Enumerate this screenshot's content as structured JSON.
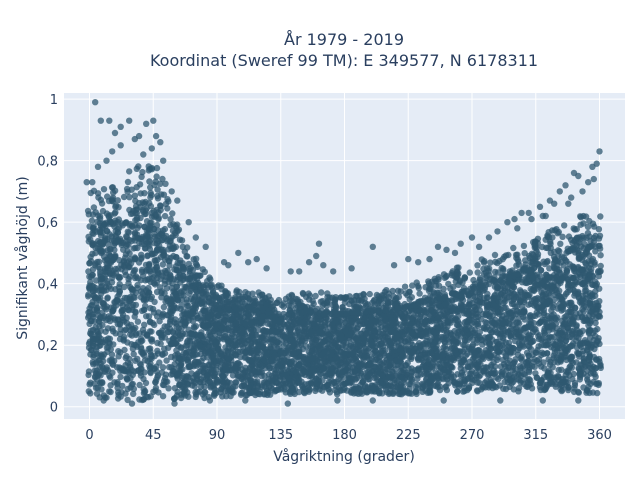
{
  "chart_data": {
    "type": "scatter",
    "title_line1": "År 1979 - 2019",
    "title_line2": "Koordinat (Sweref 99 TM): E 349577, N 6178311",
    "xlabel": "Vågriktning (grader)",
    "ylabel": "Signifikant våghöjd (m)",
    "xlim": [
      -18,
      378
    ],
    "ylim": [
      -0.04,
      1.02
    ],
    "x_ticks": [
      0,
      45,
      90,
      135,
      180,
      225,
      270,
      315,
      360
    ],
    "y_ticks": [
      0,
      0.2,
      0.4,
      0.6,
      0.8,
      1
    ],
    "y_tick_labels": [
      "0",
      "0,2",
      "0,4",
      "0,6",
      "0,8",
      "1"
    ],
    "grid": true,
    "plot_bg": "#e5ecf6",
    "grid_color": "#ffffff",
    "marker_color": "#2f5870",
    "marker_opacity": 0.75,
    "series_envelope": {
      "description_points": "dense scatter of hourly wave observations; outlier points listed below",
      "upper_envelope": [
        [
          0,
          0.7
        ],
        [
          15,
          0.72
        ],
        [
          30,
          0.78
        ],
        [
          45,
          0.8
        ],
        [
          55,
          0.72
        ],
        [
          65,
          0.55
        ],
        [
          80,
          0.45
        ],
        [
          90,
          0.4
        ],
        [
          110,
          0.38
        ],
        [
          135,
          0.36
        ],
        [
          160,
          0.38
        ],
        [
          180,
          0.36
        ],
        [
          200,
          0.37
        ],
        [
          225,
          0.4
        ],
        [
          250,
          0.44
        ],
        [
          270,
          0.47
        ],
        [
          290,
          0.5
        ],
        [
          315,
          0.55
        ],
        [
          335,
          0.6
        ],
        [
          350,
          0.63
        ],
        [
          360,
          0.62
        ]
      ],
      "dense_top": [
        [
          0,
          0.55
        ],
        [
          15,
          0.6
        ],
        [
          30,
          0.62
        ],
        [
          45,
          0.63
        ],
        [
          55,
          0.58
        ],
        [
          65,
          0.45
        ],
        [
          80,
          0.37
        ],
        [
          90,
          0.33
        ],
        [
          135,
          0.3
        ],
        [
          180,
          0.3
        ],
        [
          225,
          0.32
        ],
        [
          270,
          0.38
        ],
        [
          315,
          0.45
        ],
        [
          345,
          0.52
        ],
        [
          360,
          0.52
        ]
      ],
      "lower_envelope": [
        [
          0,
          0.03
        ],
        [
          30,
          0.02
        ],
        [
          60,
          0.02
        ],
        [
          90,
          0.03
        ],
        [
          135,
          0.04
        ],
        [
          180,
          0.04
        ],
        [
          225,
          0.04
        ],
        [
          270,
          0.05
        ],
        [
          315,
          0.05
        ],
        [
          360,
          0.04
        ]
      ]
    },
    "outliers": [
      [
        4,
        0.99
      ],
      [
        8,
        0.93
      ],
      [
        14,
        0.93
      ],
      [
        18,
        0.89
      ],
      [
        22,
        0.91
      ],
      [
        28,
        0.93
      ],
      [
        32,
        0.87
      ],
      [
        35,
        0.88
      ],
      [
        40,
        0.92
      ],
      [
        45,
        0.93
      ],
      [
        47,
        0.88
      ],
      [
        50,
        0.86
      ],
      [
        44,
        0.84
      ],
      [
        38,
        0.82
      ],
      [
        22,
        0.85
      ],
      [
        16,
        0.83
      ],
      [
        12,
        0.8
      ],
      [
        6,
        0.78
      ],
      [
        2,
        0.73
      ],
      [
        -2,
        0.73
      ],
      [
        52,
        0.8
      ],
      [
        58,
        0.7
      ],
      [
        62,
        0.67
      ],
      [
        70,
        0.6
      ],
      [
        75,
        0.55
      ],
      [
        82,
        0.52
      ],
      [
        95,
        0.47
      ],
      [
        98,
        0.46
      ],
      [
        105,
        0.5
      ],
      [
        112,
        0.47
      ],
      [
        118,
        0.48
      ],
      [
        125,
        0.45
      ],
      [
        142,
        0.44
      ],
      [
        148,
        0.44
      ],
      [
        155,
        0.47
      ],
      [
        160,
        0.49
      ],
      [
        162,
        0.53
      ],
      [
        165,
        0.46
      ],
      [
        172,
        0.44
      ],
      [
        185,
        0.45
      ],
      [
        200,
        0.52
      ],
      [
        215,
        0.46
      ],
      [
        225,
        0.48
      ],
      [
        232,
        0.47
      ],
      [
        240,
        0.48
      ],
      [
        246,
        0.52
      ],
      [
        252,
        0.51
      ],
      [
        258,
        0.5
      ],
      [
        262,
        0.53
      ],
      [
        270,
        0.55
      ],
      [
        275,
        0.52
      ],
      [
        282,
        0.55
      ],
      [
        288,
        0.57
      ],
      [
        295,
        0.6
      ],
      [
        300,
        0.61
      ],
      [
        305,
        0.63
      ],
      [
        310,
        0.63
      ],
      [
        312,
        0.61
      ],
      [
        318,
        0.65
      ],
      [
        322,
        0.62
      ],
      [
        325,
        0.67
      ],
      [
        328,
        0.66
      ],
      [
        332,
        0.7
      ],
      [
        336,
        0.72
      ],
      [
        340,
        0.68
      ],
      [
        342,
        0.76
      ],
      [
        345,
        0.75
      ],
      [
        348,
        0.7
      ],
      [
        352,
        0.73
      ],
      [
        355,
        0.78
      ],
      [
        358,
        0.79
      ],
      [
        360,
        0.83
      ],
      [
        356,
        0.74
      ],
      [
        338,
        0.66
      ],
      [
        320,
        0.62
      ],
      [
        302,
        0.58
      ],
      [
        200,
        0.02
      ],
      [
        250,
        0.02
      ],
      [
        320,
        0.02
      ],
      [
        175,
        0.02
      ],
      [
        140,
        0.01
      ],
      [
        60,
        0.01
      ],
      [
        30,
        0.01
      ],
      [
        85,
        0.02
      ],
      [
        110,
        0.02
      ],
      [
        290,
        0.02
      ],
      [
        345,
        0.02
      ],
      [
        10,
        0.02
      ]
    ]
  }
}
